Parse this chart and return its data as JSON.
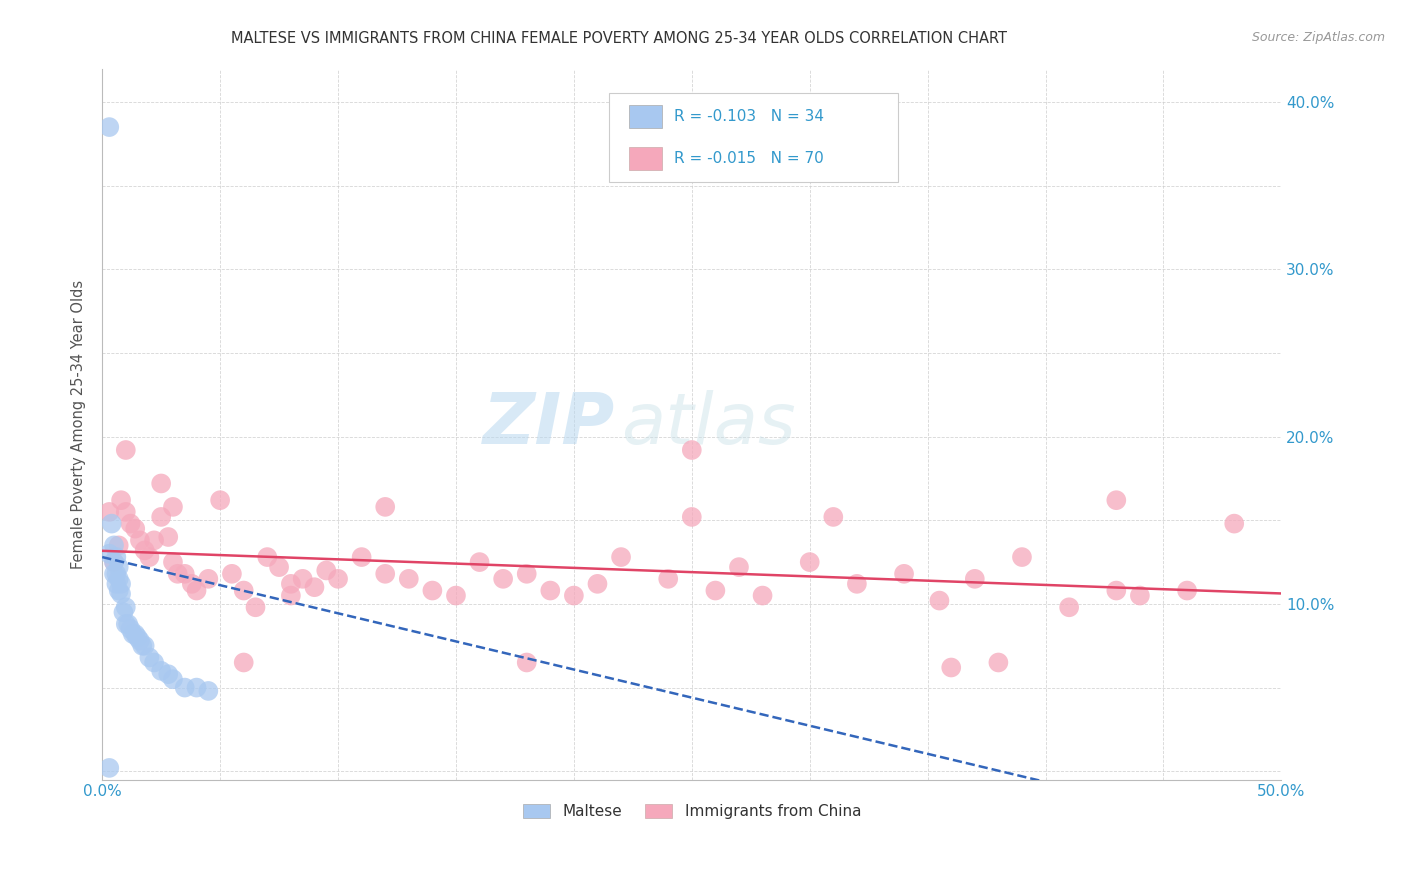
{
  "title": "MALTESE VS IMMIGRANTS FROM CHINA FEMALE POVERTY AMONG 25-34 YEAR OLDS CORRELATION CHART",
  "source": "Source: ZipAtlas.com",
  "ylabel": "Female Poverty Among 25-34 Year Olds",
  "xlim": [
    0.0,
    0.5
  ],
  "ylim": [
    -0.005,
    0.42
  ],
  "maltese_color": "#a8c8f0",
  "china_color": "#f5a8bb",
  "trend_maltese_color": "#3366bb",
  "trend_china_color": "#e04466",
  "legend_R_maltese": "-0.103",
  "legend_N_maltese": "34",
  "legend_R_china": "-0.015",
  "legend_N_china": "70",
  "watermark_zip": "ZIP",
  "watermark_atlas": "atlas",
  "maltese_x": [
    0.003,
    0.003,
    0.004,
    0.005,
    0.005,
    0.005,
    0.006,
    0.006,
    0.006,
    0.007,
    0.007,
    0.007,
    0.008,
    0.008,
    0.009,
    0.01,
    0.01,
    0.011,
    0.012,
    0.013,
    0.014,
    0.015,
    0.016,
    0.017,
    0.018,
    0.02,
    0.022,
    0.025,
    0.028,
    0.03,
    0.035,
    0.04,
    0.045,
    0.003
  ],
  "maltese_y": [
    0.385,
    0.13,
    0.148,
    0.135,
    0.125,
    0.118,
    0.128,
    0.118,
    0.112,
    0.122,
    0.115,
    0.108,
    0.112,
    0.106,
    0.095,
    0.098,
    0.088,
    0.088,
    0.085,
    0.082,
    0.082,
    0.08,
    0.078,
    0.075,
    0.075,
    0.068,
    0.065,
    0.06,
    0.058,
    0.055,
    0.05,
    0.05,
    0.048,
    0.002
  ],
  "china_x": [
    0.003,
    0.005,
    0.007,
    0.008,
    0.01,
    0.012,
    0.014,
    0.016,
    0.018,
    0.02,
    0.022,
    0.025,
    0.028,
    0.03,
    0.032,
    0.035,
    0.038,
    0.04,
    0.045,
    0.05,
    0.055,
    0.06,
    0.065,
    0.07,
    0.075,
    0.08,
    0.085,
    0.09,
    0.095,
    0.1,
    0.11,
    0.12,
    0.13,
    0.14,
    0.15,
    0.16,
    0.17,
    0.18,
    0.19,
    0.2,
    0.21,
    0.22,
    0.24,
    0.25,
    0.26,
    0.27,
    0.28,
    0.3,
    0.32,
    0.34,
    0.355,
    0.37,
    0.39,
    0.41,
    0.43,
    0.44,
    0.46,
    0.01,
    0.03,
    0.06,
    0.12,
    0.18,
    0.25,
    0.31,
    0.38,
    0.43,
    0.48,
    0.025,
    0.08,
    0.36
  ],
  "china_y": [
    0.155,
    0.125,
    0.135,
    0.162,
    0.155,
    0.148,
    0.145,
    0.138,
    0.132,
    0.128,
    0.138,
    0.152,
    0.14,
    0.125,
    0.118,
    0.118,
    0.112,
    0.108,
    0.115,
    0.162,
    0.118,
    0.108,
    0.098,
    0.128,
    0.122,
    0.105,
    0.115,
    0.11,
    0.12,
    0.115,
    0.128,
    0.118,
    0.115,
    0.108,
    0.105,
    0.125,
    0.115,
    0.118,
    0.108,
    0.105,
    0.112,
    0.128,
    0.115,
    0.152,
    0.108,
    0.122,
    0.105,
    0.125,
    0.112,
    0.118,
    0.102,
    0.115,
    0.128,
    0.098,
    0.108,
    0.105,
    0.108,
    0.192,
    0.158,
    0.065,
    0.158,
    0.065,
    0.192,
    0.152,
    0.065,
    0.162,
    0.148,
    0.172,
    0.112,
    0.062
  ]
}
